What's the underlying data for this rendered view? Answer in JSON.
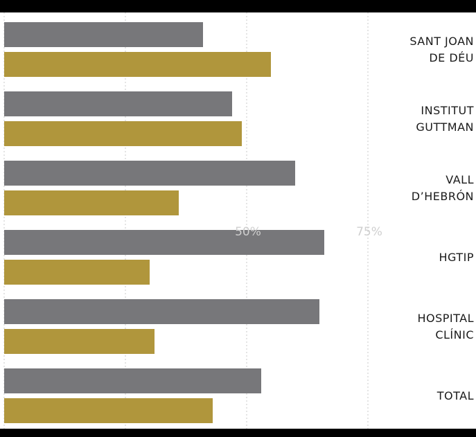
{
  "chart_data": {
    "type": "bar",
    "orientation": "horizontal",
    "categories": [
      "SANT JOAN\nDE DÉU",
      "INSTITUT\nGUTTMAN",
      "VALL\nD’HEBRÓN",
      "HGTIP",
      "HOSPITAL\nCLÍNIC",
      "TOTAL"
    ],
    "series": [
      {
        "color": "#77777a",
        "values": [
          41,
          47,
          60,
          66,
          65,
          53
        ]
      },
      {
        "color": "#b0963c",
        "values": [
          55,
          49,
          36,
          30,
          31,
          43
        ]
      }
    ],
    "tick_labels": [
      "50%",
      "75%"
    ],
    "gridline_values": [
      0,
      25,
      50,
      75
    ],
    "xlim": [
      0,
      100
    ],
    "grid": true,
    "grid_style": "dotted",
    "legend": "none"
  }
}
